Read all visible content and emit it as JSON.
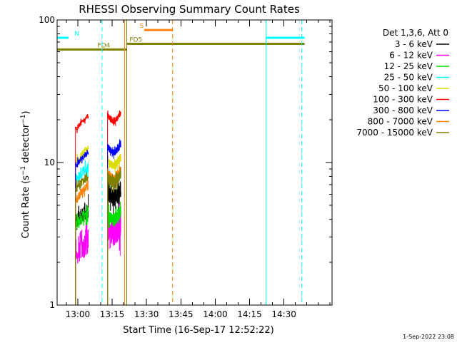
{
  "chart_data": {
    "type": "line",
    "title": "RHESSI Observing Summary Count Rates",
    "xlabel": "Start Time (16-Sep-17 12:52:22)",
    "ylabel_main": "Count Rate (s",
    "ylabel_sup1": "−1",
    "ylabel_mid": " detector",
    "ylabel_sup2": "−1",
    "ylabel_end": ")",
    "yscale": "log",
    "ylim": [
      1,
      100
    ],
    "xlim_minutes": [
      -27,
      33
    ],
    "x_ticks": [
      {
        "m": -22.5,
        "label": "13:00"
      },
      {
        "m": -15,
        "label": "13:15"
      },
      {
        "m": -7.5,
        "label": "13:30"
      },
      {
        "m": 0,
        "label": "13:45"
      },
      {
        "m": 7.5,
        "label": "14:00"
      },
      {
        "m": 15,
        "label": "14:15"
      },
      {
        "m": 22.5,
        "label": "14:30"
      }
    ],
    "y_ticks": [
      {
        "v": 1,
        "label": "1"
      },
      {
        "v": 10,
        "label": "10"
      },
      {
        "v": 100,
        "label": "100"
      }
    ],
    "legend_header": "Det 1,3,6, Att 0",
    "footer_date": "1-Sep-2022 23:08",
    "segments": [
      [
        -23,
        -20.2
      ],
      [
        -16,
        -13.1
      ]
    ],
    "series": [
      {
        "name": "3 - 6 keV",
        "color": "#000000",
        "level1": 3.8,
        "level2": 6.3,
        "var": 0.14
      },
      {
        "name": "6 - 12 keV",
        "color": "#ff00ff",
        "level1": 2.3,
        "level2": 3.6,
        "var": 0.22
      },
      {
        "name": "12 - 25 keV",
        "color": "#00e000",
        "level1": 3.6,
        "level2": 4.4,
        "var": 0.1
      },
      {
        "name": "25 - 50 keV",
        "color": "#00ffff",
        "level1": 7.5,
        "level2": 8.2,
        "var": 0.08
      },
      {
        "name": "50 - 100 keV",
        "color": "#dddd00",
        "level1": 10.0,
        "level2": 10.5,
        "var": 0.06
      },
      {
        "name": "100 - 300 keV",
        "color": "#ff0000",
        "level1": 17.0,
        "level2": 21.5,
        "var": 0.04
      },
      {
        "name": "300 - 800 keV",
        "color": "#0000ff",
        "level1": 9.5,
        "level2": 13.0,
        "var": 0.05
      },
      {
        "name": "800 - 7000 keV",
        "color": "#ff8000",
        "level1": 5.5,
        "level2": 8.5,
        "var": 0.07
      },
      {
        "name": "7000 - 15000 keV",
        "color": "#808000",
        "level1": 6.5,
        "level2": 8.0,
        "var": 0.08
      }
    ],
    "markers": [
      {
        "type": "bar",
        "label": "N",
        "color": "#00ffff",
        "start": -27,
        "end": -24.5,
        "y": 75,
        "label_m": -23.2
      },
      {
        "type": "bar",
        "label": "",
        "color": "#00ffff",
        "start": 18.6,
        "end": 27,
        "y": 75
      },
      {
        "type": "bar",
        "label": "S",
        "color": "#ff8000",
        "start": -8,
        "end": -1.8,
        "y": 85,
        "label_m": -9
      },
      {
        "type": "bar",
        "label": "FD4",
        "color": "#808000",
        "start": -27,
        "end": -11.8,
        "y": 62,
        "label_m": -18.2
      },
      {
        "type": "bar",
        "label": "FD5",
        "color": "#808000",
        "start": -11.8,
        "end": 27,
        "y": 68,
        "label_m": -11.2
      },
      {
        "type": "vline",
        "color": "#00ffff",
        "m": -27,
        "dashed": false
      },
      {
        "type": "vline",
        "color": "#00ffff",
        "m": -17.2,
        "dashed": true
      },
      {
        "type": "vline",
        "color": "#00ffff",
        "m": 18.6,
        "dashed": false
      },
      {
        "type": "vline",
        "color": "#00ffff",
        "m": 26.4,
        "dashed": true
      },
      {
        "type": "vline",
        "color": "#ff8000",
        "m": -12.3,
        "dashed": false
      },
      {
        "type": "vline",
        "color": "#808000",
        "m": -11.8,
        "dashed": false
      },
      {
        "type": "vline",
        "color": "#ff8000",
        "m": -1.8,
        "dashed": true
      }
    ]
  }
}
